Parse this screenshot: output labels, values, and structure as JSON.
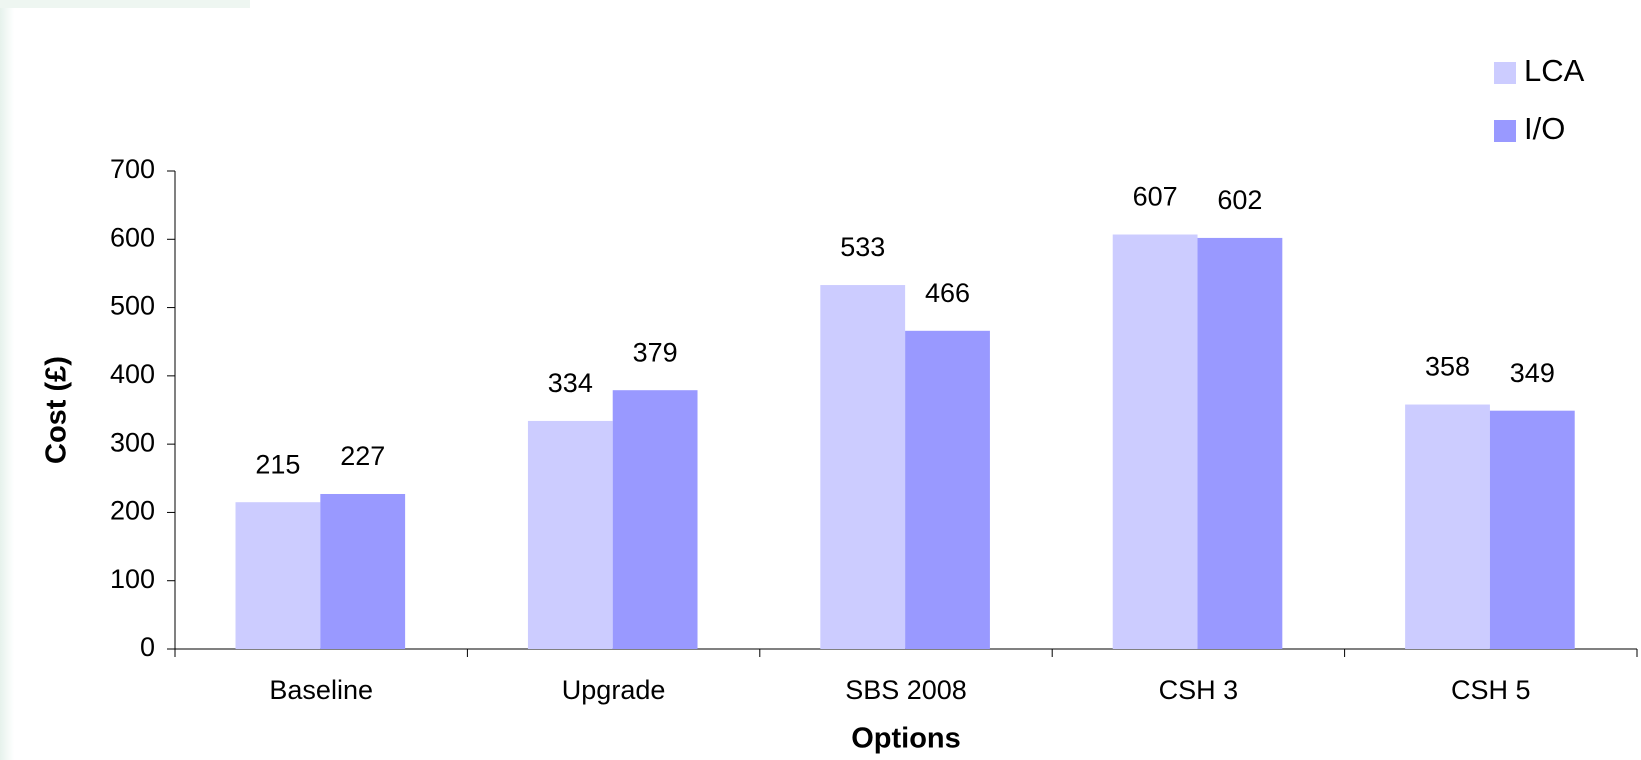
{
  "chart_data": {
    "type": "bar",
    "categories": [
      "Baseline",
      "Upgrade",
      "SBS 2008",
      "CSH 3",
      "CSH 5"
    ],
    "series": [
      {
        "name": "LCA",
        "color": "#ccccff",
        "values": [
          215,
          334,
          533,
          607,
          358
        ]
      },
      {
        "name": "I/O",
        "color": "#9999ff",
        "values": [
          227,
          379,
          466,
          602,
          349
        ]
      }
    ],
    "xlabel": "Options",
    "ylabel": "Cost (£)",
    "ylim": [
      0,
      700
    ],
    "yticks": [
      0,
      100,
      200,
      300,
      400,
      500,
      600,
      700
    ],
    "legend": "top-right"
  }
}
